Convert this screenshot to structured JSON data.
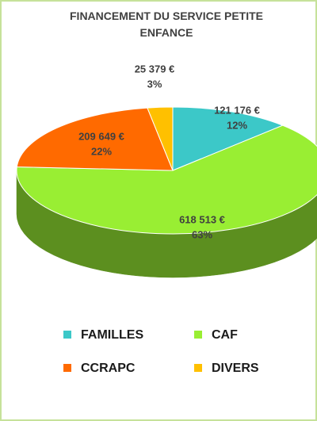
{
  "chart_data": {
    "type": "pie3d",
    "title": "FINANCEMENT DU SERVICE PETITE ENFANCE",
    "categories": [
      "FAMILLES",
      "CAF",
      "CCRAPC",
      "DIVERS"
    ],
    "values": [
      121176,
      618513,
      209649,
      25379
    ],
    "value_labels": [
      "121 176 €",
      "618 513 €",
      "209 649 €",
      "25 379 €"
    ],
    "percent_labels": [
      "12%",
      "63%",
      "22%",
      "3%"
    ],
    "colors": [
      "#3cc8c8",
      "#99ee33",
      "#ff6a00",
      "#ffc000"
    ],
    "legend": "bottom"
  }
}
